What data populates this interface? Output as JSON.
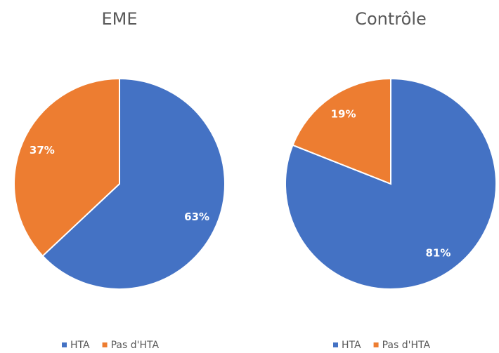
{
  "chart_data": [
    {
      "type": "pie",
      "title": "EME",
      "categories": [
        "HTA",
        "Pas d'HTA"
      ],
      "values": [
        63,
        37
      ],
      "value_labels": [
        "63%",
        "37%"
      ],
      "colors": [
        "#4472c4",
        "#ed7d31"
      ]
    },
    {
      "type": "pie",
      "title": "Contrôle",
      "categories": [
        "HTA",
        "Pas d'HTA"
      ],
      "values": [
        81,
        19
      ],
      "value_labels": [
        "81%",
        "19%"
      ],
      "colors": [
        "#4472c4",
        "#ed7d31"
      ]
    }
  ]
}
